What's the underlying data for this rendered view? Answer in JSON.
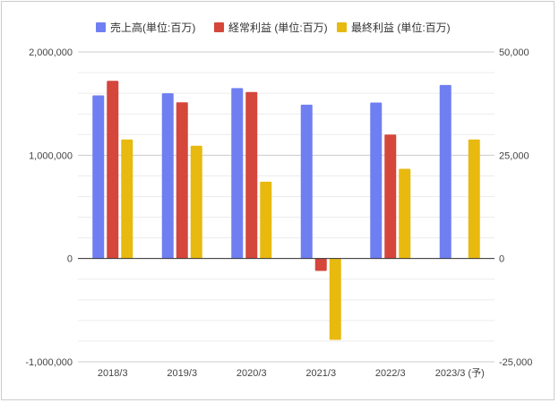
{
  "chart_data": {
    "type": "bar",
    "categories": [
      "2018/3",
      "2019/3",
      "2020/3",
      "2021/3",
      "2022/3",
      "2023/3 (予)"
    ],
    "series": [
      {
        "name": "売上高(単位:百万)",
        "axis": "left",
        "color": "#6f7ff2",
        "values": [
          1580000,
          1600000,
          1650000,
          1490000,
          1510000,
          1680000
        ]
      },
      {
        "name": "経常利益 (単位:百万)",
        "axis": "right",
        "color": "#d5463b",
        "values": [
          43000,
          37800,
          40300,
          -3000,
          30000,
          null
        ]
      },
      {
        "name": "最終利益 (単位:百万)",
        "axis": "right",
        "color": "#e8b90f",
        "values": [
          28800,
          27300,
          18600,
          -19700,
          21700,
          28800
        ]
      }
    ],
    "left_axis": {
      "ylim": [
        -1000000,
        2000000
      ],
      "ticks": [
        {
          "value": -1000000,
          "label": "-1,000,000"
        },
        {
          "value": 0,
          "label": "0"
        },
        {
          "value": 1000000,
          "label": "1,000,000"
        },
        {
          "value": 2000000,
          "label": "2,000,000"
        }
      ]
    },
    "right_axis": {
      "ylim": [
        -25000,
        50000
      ],
      "ticks": [
        {
          "value": -25000,
          "label": "-25,000"
        },
        {
          "value": 0,
          "label": "0"
        },
        {
          "value": 25000,
          "label": "25,000"
        },
        {
          "value": 50000,
          "label": "50,000"
        }
      ]
    },
    "grid": true,
    "legend_position": "top"
  }
}
